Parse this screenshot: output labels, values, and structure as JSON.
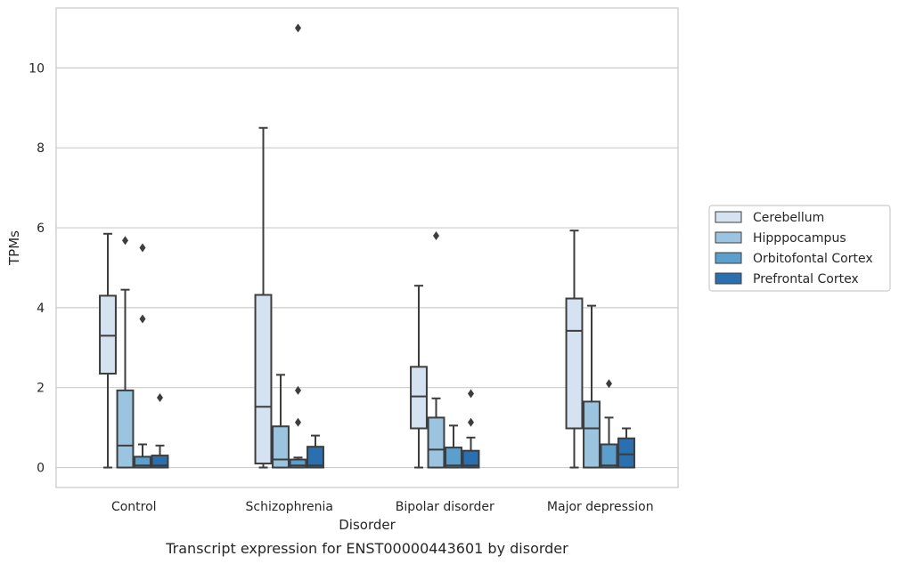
{
  "chart_data": {
    "type": "box",
    "xlabel": "Disorder",
    "ylabel": "TPMs",
    "caption": "Transcript expression for ENST00000443601 by disorder",
    "ylim": [
      -0.5,
      11.5
    ],
    "yticks": [
      0,
      2,
      4,
      6,
      8,
      10
    ],
    "grid": "horizontal",
    "legend_position": "right",
    "categories": [
      "Control",
      "Schizophrenia",
      "Bipolar disorder",
      "Major depression"
    ],
    "series": [
      {
        "name": "Cerebellum",
        "color": "#d4e2f1",
        "boxes": [
          {
            "whisker_low": 0.0,
            "q1": 2.35,
            "median": 3.3,
            "q3": 4.3,
            "whisker_high": 5.85,
            "outliers": []
          },
          {
            "whisker_low": 0.0,
            "q1": 0.1,
            "median": 1.52,
            "q3": 4.32,
            "whisker_high": 8.5,
            "outliers": []
          },
          {
            "whisker_low": 0.0,
            "q1": 0.98,
            "median": 1.78,
            "q3": 2.52,
            "whisker_high": 4.55,
            "outliers": []
          },
          {
            "whisker_low": 0.0,
            "q1": 0.98,
            "median": 3.42,
            "q3": 4.23,
            "whisker_high": 5.93,
            "outliers": []
          }
        ]
      },
      {
        "name": "Hipppocampus",
        "color": "#9ac4df",
        "boxes": [
          {
            "whisker_low": 0.0,
            "q1": 0.0,
            "median": 0.55,
            "q3": 1.93,
            "whisker_high": 4.45,
            "outliers": [
              5.68
            ]
          },
          {
            "whisker_low": 0.0,
            "q1": 0.0,
            "median": 0.2,
            "q3": 1.03,
            "whisker_high": 2.32,
            "outliers": []
          },
          {
            "whisker_low": 0.0,
            "q1": 0.0,
            "median": 0.45,
            "q3": 1.25,
            "whisker_high": 1.73,
            "outliers": [
              5.8
            ]
          },
          {
            "whisker_low": 0.0,
            "q1": 0.0,
            "median": 0.98,
            "q3": 1.65,
            "whisker_high": 4.05,
            "outliers": []
          }
        ]
      },
      {
        "name": "Orbitofontal Cortex",
        "color": "#5b9fcd",
        "boxes": [
          {
            "whisker_low": 0.0,
            "q1": 0.0,
            "median": 0.05,
            "q3": 0.27,
            "whisker_high": 0.58,
            "outliers": [
              3.72,
              5.5
            ]
          },
          {
            "whisker_low": 0.0,
            "q1": 0.0,
            "median": 0.05,
            "q3": 0.2,
            "whisker_high": 0.25,
            "outliers": [
              1.13,
              1.93,
              11.0
            ]
          },
          {
            "whisker_low": 0.0,
            "q1": 0.0,
            "median": 0.05,
            "q3": 0.5,
            "whisker_high": 1.05,
            "outliers": []
          },
          {
            "whisker_low": 0.0,
            "q1": 0.0,
            "median": 0.05,
            "q3": 0.58,
            "whisker_high": 1.25,
            "outliers": [
              2.1
            ]
          }
        ]
      },
      {
        "name": "Prefrontal Cortex",
        "color": "#2a6fb0",
        "boxes": [
          {
            "whisker_low": 0.0,
            "q1": 0.0,
            "median": 0.05,
            "q3": 0.3,
            "whisker_high": 0.55,
            "outliers": [
              1.75
            ]
          },
          {
            "whisker_low": 0.0,
            "q1": 0.0,
            "median": 0.05,
            "q3": 0.52,
            "whisker_high": 0.8,
            "outliers": []
          },
          {
            "whisker_low": 0.0,
            "q1": 0.0,
            "median": 0.05,
            "q3": 0.42,
            "whisker_high": 0.75,
            "outliers": [
              1.13,
              1.85
            ]
          },
          {
            "whisker_low": 0.0,
            "q1": 0.0,
            "median": 0.33,
            "q3": 0.73,
            "whisker_high": 0.98,
            "outliers": []
          }
        ]
      }
    ]
  }
}
